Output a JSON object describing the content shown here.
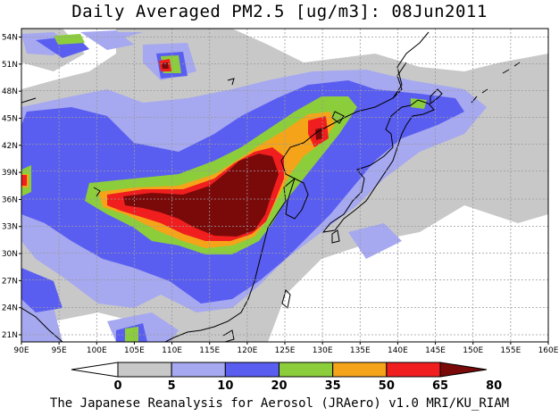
{
  "title": "Daily Averaged PM2.5 [ug/m3]: 08Jun2011",
  "footer": "The Japanese Reanalysis for Aerosol (JRAero) v1.0 MRI/KU_RIAM",
  "map": {
    "lon_ticks": [
      "90E",
      "95E",
      "100E",
      "105E",
      "110E",
      "115E",
      "120E",
      "125E",
      "130E",
      "135E",
      "140E",
      "145E",
      "150E",
      "155E",
      "160E"
    ],
    "lat_ticks": [
      "54N",
      "51N",
      "48N",
      "45N",
      "42N",
      "39N",
      "36N",
      "33N",
      "30N",
      "27N",
      "24N",
      "21N"
    ],
    "lon_range": [
      90,
      160
    ],
    "lat_range": [
      20,
      55
    ],
    "grid": true
  },
  "colorbar": {
    "labels": [
      "0",
      "5",
      "10",
      "20",
      "35",
      "50",
      "65",
      "80"
    ],
    "colors": [
      "#ffffff",
      "#c8c8c8",
      "#a6a8f0",
      "#5a5ef0",
      "#8ccd3c",
      "#f5a41a",
      "#f01e1e",
      "#7a0a0a"
    ],
    "extend": "both"
  }
}
